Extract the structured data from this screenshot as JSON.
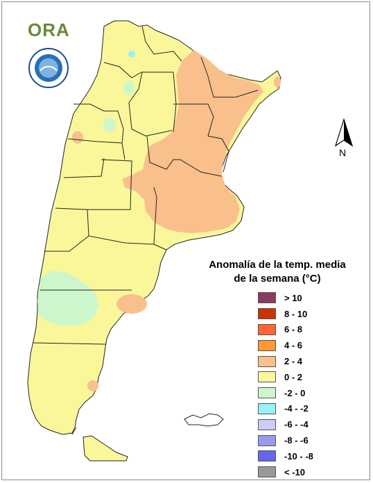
{
  "map": {
    "logo_text": "ORA",
    "north_label": "N",
    "legend_title_line1": "Anomalía de la temp. media",
    "legend_title_line2": "de la semana (°C)",
    "legend": [
      {
        "label": "> 10",
        "color": "#8b3a62"
      },
      {
        "label": "8 - 10",
        "color": "#cc3300"
      },
      {
        "label": "6 - 8",
        "color": "#ff6633"
      },
      {
        "label": "4 - 6",
        "color": "#ff9933"
      },
      {
        "label": "2 - 4",
        "color": "#f9c08c"
      },
      {
        "label": "0 - 2",
        "color": "#f9f79a"
      },
      {
        "label": "-2 - 0",
        "color": "#ccf7cc"
      },
      {
        "label": "-4 - -2",
        "color": "#99f2f2"
      },
      {
        "label": "-6 - -4",
        "color": "#ccccf7"
      },
      {
        "label": "-8 - -6",
        "color": "#9999ee"
      },
      {
        "label": "-10 - -8",
        "color": "#6666ee"
      },
      {
        "label": "< -10",
        "color": "#999999"
      }
    ],
    "base_color": "#f9f79a",
    "warm_color": "#f9c08c",
    "cool_color": "#ccf7cc",
    "cold_color": "#99f2f2"
  }
}
